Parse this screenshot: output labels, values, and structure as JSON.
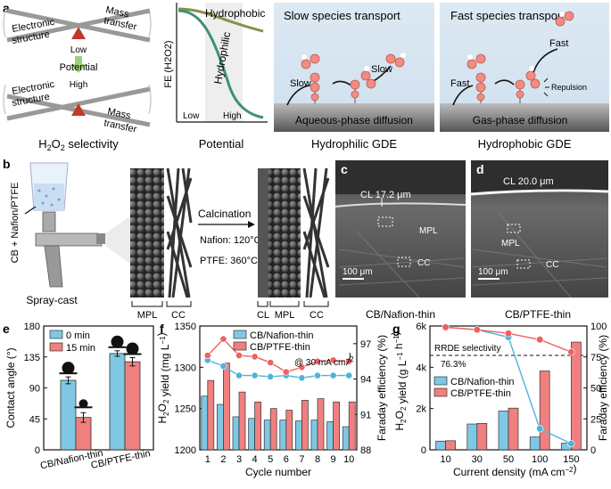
{
  "panel_labels": {
    "a": "a",
    "b": "b",
    "c": "c",
    "d": "d",
    "e": "e",
    "f": "f",
    "g": "g"
  },
  "panel_a": {
    "seesaw_top": {
      "left": "Electronic structure",
      "left_l1": "Electronic",
      "left_l2": "structure",
      "right_l1": "Mass",
      "right_l2": "transfer",
      "low": "Low"
    },
    "arrow_label": "Potential",
    "seesaw_bottom": {
      "high": "High",
      "left_l1": "Electronic",
      "left_l2": "structure",
      "right_l1": "Mass",
      "right_l2": "transfer"
    },
    "caption": "H2O2 selectivity",
    "plot": {
      "ylabel": "FE (H2O2)",
      "hydrophobic": "Hydrophobic",
      "hydrophilic": "Hydrophilic",
      "low": "Low",
      "high": "High",
      "xlabel": "Potential"
    },
    "hydrophilic_gde": {
      "title": "Slow species transport",
      "slow1": "Slow",
      "slow2": "Slow",
      "substrate": "Aqueous-phase diffusion",
      "caption": "Hydrophilic GDE"
    },
    "hydrophobic_gde": {
      "title": "Fast species transport",
      "fast1": "Fast",
      "fast2": "Fast",
      "repulsion": "Repulsion",
      "substrate": "Gas-phase diffusion",
      "caption": "Hydrophobic GDE"
    }
  },
  "panel_b": {
    "ink_label": "CB + Nafion/PTFE",
    "spray_label": "Spray-cast",
    "layers_left": [
      "MPL",
      "CC"
    ],
    "calcination": "Calcination",
    "nafion_temp": "Nafion: 120°C",
    "ptfe_temp": "PTFE: 360°C",
    "layers_right": [
      "CL",
      "MPL",
      "CC"
    ]
  },
  "panel_c": {
    "cl": "CL 17.2 μm",
    "mpl": "MPL",
    "cc": "CC",
    "scale": "100 μm",
    "caption": "CB/Nafion-thin"
  },
  "panel_d": {
    "cl": "CL 20.0 μm",
    "mpl": "MPL",
    "cc": "CC",
    "scale": "100 μm",
    "caption": "CB/PTFE-thin"
  },
  "chart_data": [
    {
      "panel": "e",
      "type": "bar",
      "categories": [
        "CB/Nafion-thin",
        "CB/PTFE-thin"
      ],
      "series": [
        {
          "name": "0 min",
          "values": [
            101,
            140
          ],
          "errors": [
            5,
            4
          ],
          "color": "#7ec8e3"
        },
        {
          "name": "15 min",
          "values": [
            47,
            128
          ],
          "errors": [
            7,
            6
          ],
          "color": "#f08080"
        }
      ],
      "ylabel": "Contact angle (°)",
      "ylim": [
        0,
        180
      ],
      "yticks": [
        "0",
        "45",
        "90",
        "135",
        "180"
      ]
    },
    {
      "panel": "f",
      "type": "bar+line",
      "categories": [
        "1",
        "2",
        "3",
        "4",
        "5",
        "6",
        "7",
        "8",
        "9",
        "10"
      ],
      "series": [
        {
          "name": "CB/Nafion-thin",
          "axis": "left",
          "kind": "bar",
          "values": [
            1265,
            1255,
            1240,
            1238,
            1236,
            1236,
            1235,
            1236,
            1234,
            1228
          ],
          "color": "#7ec8e3"
        },
        {
          "name": "CB/PTFE-thin",
          "axis": "left",
          "kind": "bar",
          "values": [
            1284,
            1305,
            1270,
            1258,
            1250,
            1248,
            1260,
            1262,
            1258,
            1258
          ],
          "color": "#f08080"
        },
        {
          "name": "CB/Nafion-thin FE",
          "axis": "right",
          "kind": "line",
          "values": [
            95.6,
            95.1,
            94.3,
            94.3,
            94.2,
            94.3,
            94.1,
            94.3,
            94.3,
            94.3
          ],
          "color": "#4fb3d9"
        },
        {
          "name": "CB/PTFE-thin FE",
          "axis": "right",
          "kind": "line",
          "values": [
            96.0,
            97.4,
            96.0,
            95.9,
            95.4,
            94.6,
            95.0,
            95.5,
            95.6,
            95.5
          ],
          "color": "#f06060"
        }
      ],
      "annotation": "@ 30 mA cm−2",
      "ylabel": "H2O2 yield (mg L−1)",
      "ylim": [
        1200,
        1350
      ],
      "yticks": [
        "1200",
        "1250",
        "1300",
        "1350"
      ],
      "y2label": "Faraday efficiency (%)",
      "y2lim": [
        88,
        98.5
      ],
      "y2ticks": [
        "88",
        "91",
        "94",
        "97"
      ],
      "xlabel": "Cycle number"
    },
    {
      "panel": "g",
      "type": "bar+line",
      "categories": [
        "10",
        "30",
        "50",
        "100",
        "150"
      ],
      "series": [
        {
          "name": "CB/Nafion-thin",
          "axis": "left",
          "kind": "bar",
          "values": [
            0.42,
            1.25,
            1.88,
            0.62,
            0.32
          ],
          "color": "#7ec8e3"
        },
        {
          "name": "CB/PTFE-thin",
          "axis": "left",
          "kind": "bar",
          "values": [
            0.44,
            1.28,
            2.02,
            3.82,
            5.22
          ],
          "color": "#f08080"
        },
        {
          "name": "CB/Nafion-thin FE",
          "axis": "right",
          "kind": "line",
          "values": [
            99,
            97,
            91,
            17,
            5
          ],
          "color": "#4fb3d9"
        },
        {
          "name": "CB/PTFE-thin FE",
          "axis": "right",
          "kind": "line",
          "values": [
            99,
            97,
            94,
            89,
            79
          ],
          "color": "#f06060"
        }
      ],
      "rrde_label": "RRDE selectivity",
      "rrde_value": "76.3%",
      "rrde_level": 76.3,
      "ylabel": "H2O2 yield (g L−1 h−1)",
      "ylim": [
        0,
        6
      ],
      "yticks": [
        "0",
        "2k",
        "4k",
        "6k"
      ],
      "y2label": "Faraday efficiency (%)",
      "y2lim": [
        0,
        100
      ],
      "y2ticks": [
        "0",
        "25",
        "50",
        "75",
        "100"
      ],
      "xlabel": "Current density (mA cm−2)"
    }
  ]
}
